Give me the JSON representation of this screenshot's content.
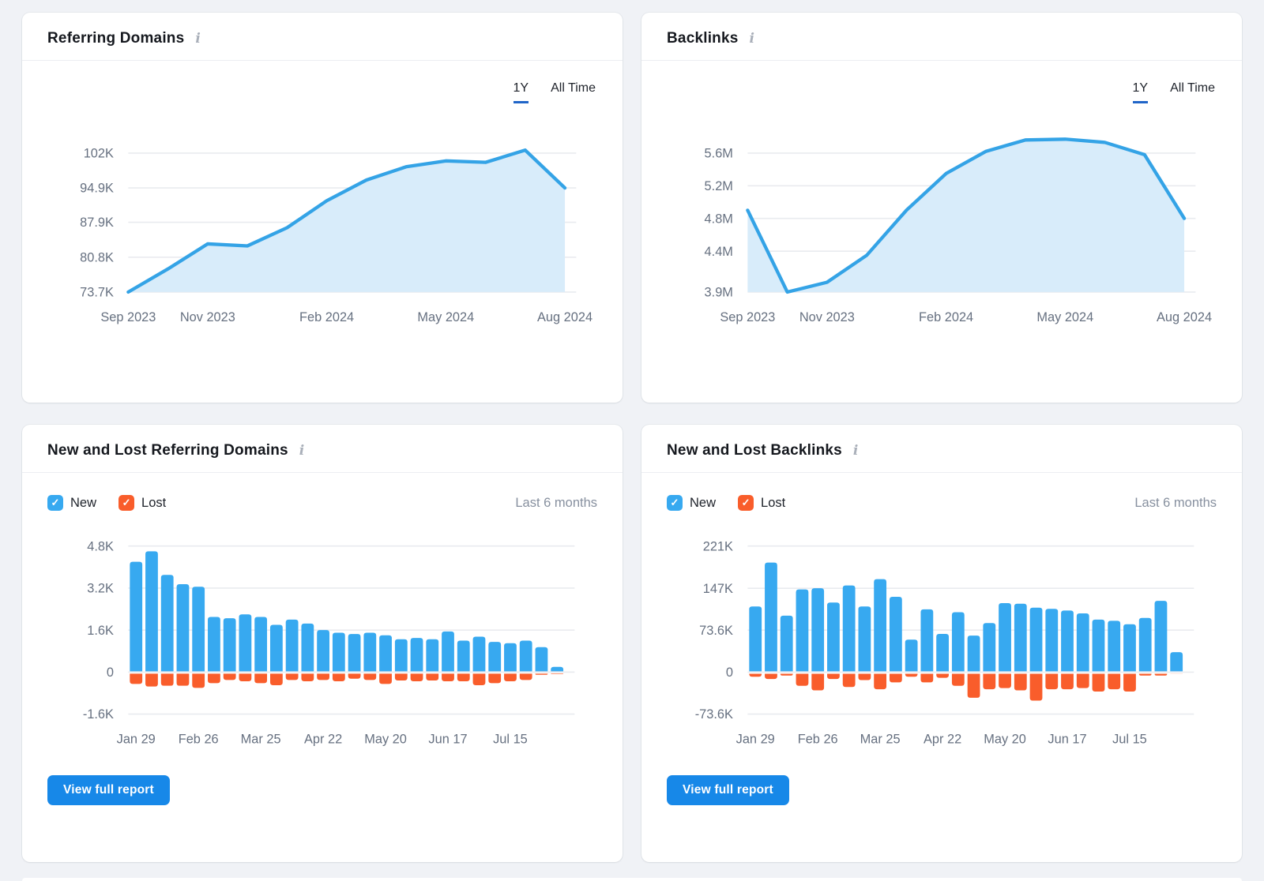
{
  "colors": {
    "bar_blue": "#37A9F0",
    "bar_orange": "#F95D2B",
    "line_blue": "#34A3E6",
    "area_fill": "#D8ECFA",
    "grid_line": "#E9EBEF",
    "axis_text": "#667080",
    "tab_underline": "#2065C8",
    "button_blue": "#1788E8"
  },
  "icons": {
    "info": "i",
    "check": "✓"
  },
  "cards": {
    "referring_domains": {
      "title": "Referring Domains",
      "tabs": [
        {
          "label": "1Y",
          "active": true
        },
        {
          "label": "All Time",
          "active": false
        }
      ],
      "chart_data": {
        "type": "area",
        "x_ticks": [
          {
            "label": "Sep 2023",
            "index": 0
          },
          {
            "label": "Nov 2023",
            "index": 2
          },
          {
            "label": "Feb 2024",
            "index": 5
          },
          {
            "label": "May 2024",
            "index": 8
          },
          {
            "label": "Aug 2024",
            "index": 11
          }
        ],
        "y_ticks": [
          {
            "label": "102K",
            "value": 102000
          },
          {
            "label": "94.9K",
            "value": 94900
          },
          {
            "label": "87.9K",
            "value": 87900
          },
          {
            "label": "80.8K",
            "value": 80800
          },
          {
            "label": "73.7K",
            "value": 73700
          }
        ],
        "values": [
          73700,
          78400,
          83500,
          83100,
          86800,
          92300,
          96500,
          99200,
          100400,
          100100,
          102600,
          94900
        ],
        "ylim": [
          73700,
          104500
        ],
        "grid": true
      }
    },
    "backlinks": {
      "title": "Backlinks",
      "tabs": [
        {
          "label": "1Y",
          "active": true
        },
        {
          "label": "All Time",
          "active": false
        }
      ],
      "chart_data": {
        "type": "area",
        "x_ticks": [
          {
            "label": "Sep 2023",
            "index": 0
          },
          {
            "label": "Nov 2023",
            "index": 2
          },
          {
            "label": "Feb 2024",
            "index": 5
          },
          {
            "label": "May 2024",
            "index": 8
          },
          {
            "label": "Aug 2024",
            "index": 11
          }
        ],
        "y_ticks": [
          {
            "label": "5.6M",
            "value": 5600000
          },
          {
            "label": "5.2M",
            "value": 5200000
          },
          {
            "label": "4.8M",
            "value": 4800000
          },
          {
            "label": "4.4M",
            "value": 4400000
          },
          {
            "label": "3.9M",
            "value": 3900000
          }
        ],
        "values": [
          4900000,
          3900000,
          4020000,
          4350000,
          4900000,
          5350000,
          5620000,
          5760000,
          5770000,
          5730000,
          5580000,
          4800000
        ],
        "ylim": [
          3900000,
          5950000
        ],
        "grid": true
      }
    },
    "new_lost_domains": {
      "title": "New and Lost Referring Domains",
      "legend": {
        "new_label": "New",
        "lost_label": "Lost",
        "new_checked": true,
        "lost_checked": true
      },
      "period_label": "Last 6 months",
      "button_label": "View full report",
      "chart_data": {
        "type": "bar",
        "x_ticks": [
          {
            "label": "Jan 29",
            "index": 0
          },
          {
            "label": "Feb 26",
            "index": 4
          },
          {
            "label": "Mar 25",
            "index": 8
          },
          {
            "label": "Apr 22",
            "index": 12
          },
          {
            "label": "May 20",
            "index": 16
          },
          {
            "label": "Jun 17",
            "index": 20
          },
          {
            "label": "Jul 15",
            "index": 24
          }
        ],
        "y_ticks": [
          {
            "label": "4.8K",
            "value": 4800
          },
          {
            "label": "3.2K",
            "value": 3200
          },
          {
            "label": "1.6K",
            "value": 1600
          },
          {
            "label": "0",
            "value": 0
          },
          {
            "label": "-1.6K",
            "value": -1600
          }
        ],
        "series": [
          {
            "name": "New",
            "values": [
              4200,
              4600,
              3700,
              3350,
              3250,
              2100,
              2050,
              2200,
              2100,
              1800,
              2000,
              1850,
              1600,
              1500,
              1450,
              1500,
              1400,
              1250,
              1300,
              1250,
              1550,
              1200,
              1350,
              1150,
              1100,
              1200,
              950,
              200
            ]
          },
          {
            "name": "Lost",
            "values": [
              -450,
              -550,
              -520,
              -520,
              -600,
              -420,
              -300,
              -350,
              -420,
              -500,
              -300,
              -350,
              -300,
              -350,
              -250,
              -300,
              -450,
              -320,
              -350,
              -320,
              -350,
              -350,
              -500,
              -420,
              -350,
              -300,
              -100,
              -80
            ]
          }
        ],
        "ylim": [
          -1600,
          4800
        ],
        "grid": true
      }
    },
    "new_lost_backlinks": {
      "title": "New and Lost Backlinks",
      "legend": {
        "new_label": "New",
        "lost_label": "Lost",
        "new_checked": true,
        "lost_checked": true
      },
      "period_label": "Last 6 months",
      "button_label": "View full report",
      "chart_data": {
        "type": "bar",
        "x_ticks": [
          {
            "label": "Jan 29",
            "index": 0
          },
          {
            "label": "Feb 26",
            "index": 4
          },
          {
            "label": "Mar 25",
            "index": 8
          },
          {
            "label": "Apr 22",
            "index": 12
          },
          {
            "label": "May 20",
            "index": 16
          },
          {
            "label": "Jun 17",
            "index": 20
          },
          {
            "label": "Jul 15",
            "index": 24
          }
        ],
        "y_ticks": [
          {
            "label": "221K",
            "value": 221000
          },
          {
            "label": "147K",
            "value": 147000
          },
          {
            "label": "73.6K",
            "value": 73600
          },
          {
            "label": "0",
            "value": 0
          },
          {
            "label": "-73.6K",
            "value": -73600
          }
        ],
        "series": [
          {
            "name": "New",
            "values": [
              115000,
              192000,
              99000,
              145000,
              147000,
              122000,
              152000,
              115000,
              163000,
              132000,
              57000,
              110000,
              67000,
              105000,
              64000,
              86000,
              121000,
              120000,
              113000,
              111000,
              108000,
              103000,
              92000,
              90000,
              84000,
              95000,
              125000,
              35000
            ]
          },
          {
            "name": "Lost",
            "values": [
              -8000,
              -12000,
              -6000,
              -24000,
              -32000,
              -12000,
              -26000,
              -14000,
              -30000,
              -18000,
              -8000,
              -18000,
              -10000,
              -24000,
              -45000,
              -30000,
              -28000,
              -32000,
              -50000,
              -30000,
              -30000,
              -28000,
              -34000,
              -30000,
              -34000,
              -6000,
              -6000,
              -3000
            ]
          }
        ],
        "ylim": [
          -73600,
          221000
        ],
        "grid": true
      }
    }
  }
}
